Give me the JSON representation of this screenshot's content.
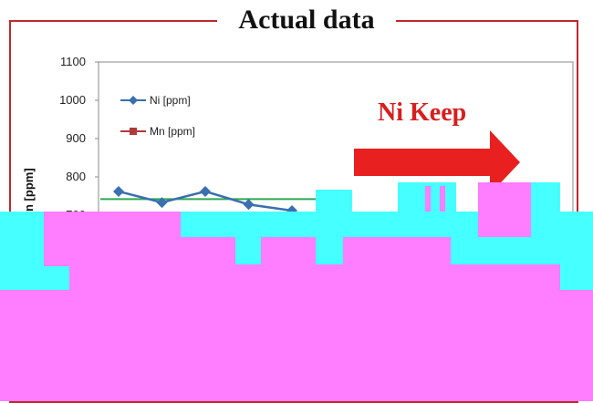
{
  "title": "Actual data",
  "callout": "Ni Keep",
  "colors": {
    "frame": "#c0282d",
    "ni": "#3a6fb0",
    "mn": "#b03a3a",
    "target_line": "#2fa84f",
    "arrow": "#e8201f",
    "corruption_magenta": "#ff7dff",
    "corruption_cyan": "#46ffff"
  },
  "chart_data": {
    "type": "line",
    "title": "Actual data",
    "ylabel": "n [ppm]",
    "yticks": [
      "1100",
      "1000",
      "900",
      "800",
      "700"
    ],
    "ylim": [
      600,
      1100
    ],
    "grid": false,
    "legend_position": "top-left",
    "series": [
      {
        "name": "Ni [ppm]",
        "marker": "diamond",
        "color": "#3a6fb0",
        "x": [
          1,
          2,
          3,
          4,
          5
        ],
        "values": [
          762,
          733,
          762,
          728,
          712
        ]
      },
      {
        "name": "Mn [ppm]",
        "marker": "square",
        "color": "#b03a3a",
        "x": [],
        "values": []
      }
    ],
    "reference_line": {
      "value": 742,
      "color": "#2fa84f"
    },
    "annotations": [
      {
        "text": "Ni Keep",
        "type": "arrow-right",
        "color": "#e8201f"
      }
    ]
  }
}
